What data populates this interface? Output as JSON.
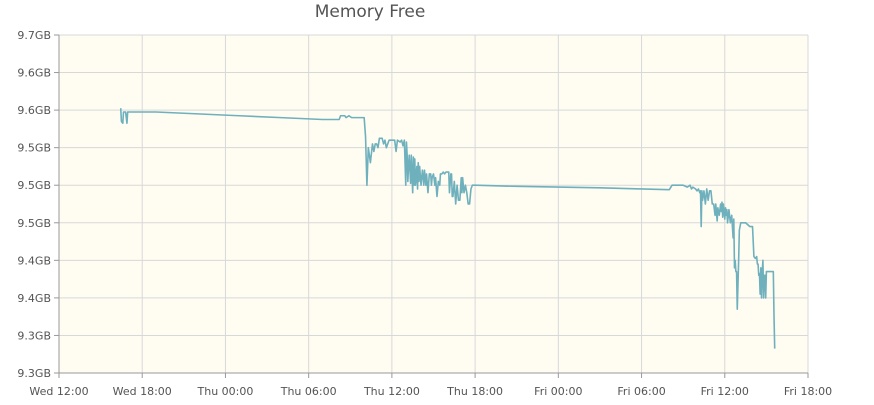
{
  "chart_data": {
    "type": "line",
    "title": "Memory Free",
    "xlabel": "",
    "ylabel": "",
    "grid": true,
    "legend": "none",
    "colors": {
      "line": "#6fb0bd",
      "plot_background": "#fffcf2",
      "grid": "#d8d8d8",
      "axis": "#999999"
    },
    "x_ticks": [
      {
        "label": "Wed 12:00",
        "t": 0
      },
      {
        "label": "Wed 18:00",
        "t": 6
      },
      {
        "label": "Thu 00:00",
        "t": 12
      },
      {
        "label": "Thu 06:00",
        "t": 18
      },
      {
        "label": "Thu 12:00",
        "t": 24
      },
      {
        "label": "Thu 18:00",
        "t": 30
      },
      {
        "label": "Fri 00:00",
        "t": 36
      },
      {
        "label": "Fri 06:00",
        "t": 42
      },
      {
        "label": "Fri 12:00",
        "t": 48
      },
      {
        "label": "Fri 18:00",
        "t": 54
      }
    ],
    "y_ticks": [
      "9.3GB",
      "9.3GB",
      "9.4GB",
      "9.4GB",
      "9.5GB",
      "9.5GB",
      "9.5GB",
      "9.6GB",
      "9.6GB",
      "9.7GB"
    ],
    "xlim": [
      0,
      54
    ],
    "ylim": [
      0,
      9
    ],
    "series": [
      {
        "values": [
          [
            4.45,
            7.05
          ],
          [
            4.5,
            6.7
          ],
          [
            4.6,
            6.65
          ],
          [
            4.65,
            6.95
          ],
          [
            4.8,
            6.95
          ],
          [
            4.9,
            6.65
          ],
          [
            4.95,
            6.95
          ],
          [
            7.0,
            6.95
          ],
          [
            10.0,
            6.9
          ],
          [
            13.0,
            6.85
          ],
          [
            16.0,
            6.8
          ],
          [
            19.0,
            6.75
          ],
          [
            20.2,
            6.75
          ],
          [
            20.3,
            6.85
          ],
          [
            20.6,
            6.85
          ],
          [
            20.7,
            6.8
          ],
          [
            20.9,
            6.85
          ],
          [
            21.1,
            6.8
          ],
          [
            21.5,
            6.8
          ],
          [
            22.0,
            6.8
          ],
          [
            22.1,
            6.3
          ],
          [
            22.2,
            5.0
          ],
          [
            22.3,
            6.0
          ],
          [
            22.45,
            5.6
          ],
          [
            22.6,
            6.1
          ],
          [
            22.7,
            5.9
          ],
          [
            22.8,
            6.1
          ],
          [
            22.9,
            6.1
          ],
          [
            23.0,
            6.0
          ],
          [
            23.1,
            6.25
          ],
          [
            23.3,
            6.25
          ],
          [
            23.4,
            6.1
          ],
          [
            23.5,
            6.2
          ],
          [
            23.6,
            6.0
          ],
          [
            23.8,
            6.2
          ],
          [
            24.0,
            6.2
          ],
          [
            24.2,
            6.2
          ],
          [
            24.3,
            5.9
          ],
          [
            24.4,
            6.2
          ],
          [
            24.6,
            6.15
          ],
          [
            24.7,
            6.2
          ],
          [
            24.8,
            6.05
          ],
          [
            24.9,
            6.2
          ],
          [
            25.0,
            5.0
          ],
          [
            25.05,
            6.15
          ],
          [
            25.1,
            5.8
          ],
          [
            25.15,
            5.1
          ],
          [
            25.2,
            5.5
          ],
          [
            25.25,
            5.8
          ],
          [
            25.35,
            5.05
          ],
          [
            25.4,
            5.8
          ],
          [
            25.5,
            4.8
          ],
          [
            25.55,
            5.75
          ],
          [
            25.6,
            5.0
          ],
          [
            25.65,
            5.7
          ],
          [
            25.7,
            5.0
          ],
          [
            25.75,
            5.2
          ],
          [
            25.8,
            5.5
          ],
          [
            25.85,
            4.9
          ],
          [
            25.9,
            5.6
          ],
          [
            25.95,
            5.1
          ],
          [
            26.0,
            5.5
          ],
          [
            26.1,
            5.0
          ],
          [
            26.2,
            5.4
          ],
          [
            26.3,
            5.0
          ],
          [
            26.35,
            5.4
          ],
          [
            26.45,
            5.0
          ],
          [
            26.5,
            5.3
          ],
          [
            26.6,
            4.8
          ],
          [
            26.7,
            5.3
          ],
          [
            26.8,
            5.3
          ],
          [
            26.85,
            5.0
          ],
          [
            26.9,
            5.2
          ],
          [
            27.0,
            5.3
          ],
          [
            27.1,
            5.0
          ],
          [
            27.15,
            5.2
          ],
          [
            27.25,
            4.7
          ],
          [
            27.35,
            5.1
          ],
          [
            27.45,
            5.0
          ],
          [
            27.5,
            5.3
          ],
          [
            27.6,
            5.3
          ],
          [
            27.7,
            5.35
          ],
          [
            27.8,
            5.3
          ],
          [
            27.9,
            5.35
          ],
          [
            28.1,
            5.35
          ],
          [
            28.15,
            4.8
          ],
          [
            28.25,
            5.3
          ],
          [
            28.3,
            5.3
          ],
          [
            28.35,
            4.7
          ],
          [
            28.4,
            4.7
          ],
          [
            28.5,
            5.1
          ],
          [
            28.6,
            4.5
          ],
          [
            28.7,
            5.0
          ],
          [
            28.8,
            4.6
          ],
          [
            28.9,
            4.6
          ],
          [
            29.0,
            5.2
          ],
          [
            29.05,
            4.8
          ],
          [
            29.1,
            5.2
          ],
          [
            29.2,
            4.8
          ],
          [
            29.3,
            5.0
          ],
          [
            29.4,
            4.8
          ],
          [
            29.5,
            4.5
          ],
          [
            29.6,
            4.5
          ],
          [
            29.7,
            4.9
          ],
          [
            29.8,
            5.0
          ],
          [
            30.0,
            5.0
          ],
          [
            33.0,
            4.97
          ],
          [
            36.0,
            4.95
          ],
          [
            39.0,
            4.93
          ],
          [
            42.0,
            4.9
          ],
          [
            44.0,
            4.88
          ],
          [
            44.2,
            5.0
          ],
          [
            45.0,
            5.0
          ],
          [
            45.3,
            4.95
          ],
          [
            45.5,
            5.0
          ],
          [
            45.6,
            4.9
          ],
          [
            45.7,
            4.95
          ],
          [
            45.9,
            4.9
          ],
          [
            46.0,
            4.85
          ],
          [
            46.1,
            4.9
          ],
          [
            46.2,
            4.8
          ],
          [
            46.25,
            4.85
          ],
          [
            46.3,
            3.9
          ],
          [
            46.35,
            4.85
          ],
          [
            46.4,
            4.6
          ],
          [
            46.5,
            4.85
          ],
          [
            46.6,
            4.5
          ],
          [
            46.7,
            4.9
          ],
          [
            46.8,
            4.6
          ],
          [
            46.9,
            4.85
          ],
          [
            47.0,
            4.85
          ],
          [
            47.1,
            4.5
          ],
          [
            47.2,
            4.5
          ],
          [
            47.3,
            4.2
          ],
          [
            47.35,
            4.5
          ],
          [
            47.45,
            4.05
          ],
          [
            47.5,
            4.4
          ],
          [
            47.6,
            4.2
          ],
          [
            47.7,
            4.5
          ],
          [
            47.75,
            4.3
          ],
          [
            47.8,
            4.55
          ],
          [
            47.85,
            4.15
          ],
          [
            47.9,
            4.5
          ],
          [
            48.0,
            4.1
          ],
          [
            48.05,
            4.4
          ],
          [
            48.1,
            4.2
          ],
          [
            48.15,
            4.35
          ],
          [
            48.2,
            4.0
          ],
          [
            48.3,
            4.35
          ],
          [
            48.4,
            4.0
          ],
          [
            48.5,
            4.2
          ],
          [
            48.6,
            3.6
          ],
          [
            48.65,
            4.1
          ],
          [
            48.7,
            2.8
          ],
          [
            48.75,
            3.0
          ],
          [
            48.8,
            2.7
          ],
          [
            48.85,
            2.7
          ],
          [
            48.9,
            1.7
          ],
          [
            49.0,
            3.0
          ],
          [
            49.05,
            3.8
          ],
          [
            49.15,
            4.0
          ],
          [
            49.5,
            4.0
          ],
          [
            49.8,
            3.9
          ],
          [
            50.0,
            3.9
          ],
          [
            50.1,
            3.1
          ],
          [
            50.2,
            3.05
          ],
          [
            50.3,
            3.1
          ],
          [
            50.35,
            2.9
          ],
          [
            50.4,
            2.9
          ],
          [
            50.45,
            2.6
          ],
          [
            50.5,
            2.65
          ],
          [
            50.55,
            2.1
          ],
          [
            50.6,
            2.8
          ],
          [
            50.65,
            2.0
          ],
          [
            50.7,
            2.7
          ],
          [
            50.75,
            3.0
          ],
          [
            50.8,
            2.0
          ],
          [
            50.85,
            2.6
          ],
          [
            50.9,
            2.6
          ],
          [
            50.95,
            2.0
          ],
          [
            51.0,
            2.7
          ],
          [
            51.5,
            2.7
          ],
          [
            51.55,
            1.5
          ],
          [
            51.6,
            0.65
          ]
        ]
      }
    ]
  }
}
